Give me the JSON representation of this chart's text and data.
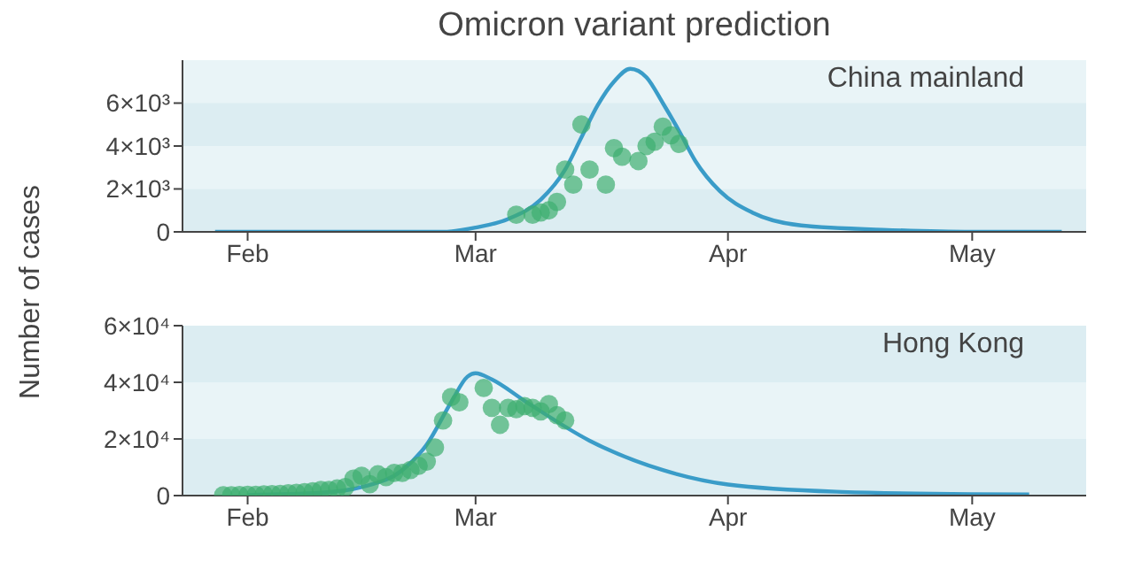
{
  "chart_data": [
    {
      "type": "scatter",
      "title": "Omicron variant prediction",
      "ylabel": "Number of cases",
      "annotations": [
        "China mainland"
      ],
      "xlim": [
        "--01-24",
        "--05-15"
      ],
      "xticks": [
        {
          "value": "--02-01",
          "label": "Feb"
        },
        {
          "value": "--03-01",
          "label": "Mar"
        },
        {
          "value": "--04-01",
          "label": "Apr"
        },
        {
          "value": "--05-01",
          "label": "May"
        }
      ],
      "ylim": [
        0,
        8000
      ],
      "yticks": [
        0,
        {
          "value": 2000,
          "label": "2×10³"
        },
        {
          "value": 4000,
          "label": "4×10³"
        },
        {
          "value": 6000,
          "label": "6×10³"
        }
      ],
      "series": [
        {
          "type": "line",
          "color": "#3a9cc8",
          "x": [
            "--01-28",
            "--02-15",
            "--02-25",
            "--03-01",
            "--03-05",
            "--03-09",
            "--03-12",
            "--03-14",
            "--03-16",
            "--03-18",
            "--03-20",
            "--03-22",
            "--03-24",
            "--03-26",
            "--03-28",
            "--03-31",
            "--04-04",
            "--04-10",
            "--04-20",
            "--05-01",
            "--05-12"
          ],
          "values": [
            0,
            0,
            0,
            200,
            600,
            1500,
            2900,
            4400,
            5900,
            7000,
            7600,
            7200,
            6000,
            4700,
            3300,
            1900,
            900,
            300,
            100,
            0,
            0
          ]
        },
        {
          "type": "scatter",
          "color": "#3dae6f",
          "x": [
            "--03-06",
            "--03-08",
            "--03-09",
            "--03-10",
            "--03-11",
            "--03-12",
            "--03-13",
            "--03-14",
            "--03-15",
            "--03-17",
            "--03-18",
            "--03-19",
            "--03-21",
            "--03-22",
            "--03-23",
            "--03-24",
            "--03-25",
            "--03-26"
          ],
          "values": [
            800,
            800,
            900,
            1000,
            1400,
            2900,
            2200,
            5000,
            2900,
            2200,
            3900,
            3500,
            3300,
            4000,
            4200,
            4900,
            4500,
            4100
          ]
        }
      ]
    },
    {
      "type": "scatter",
      "annotations": [
        "Hong Kong"
      ],
      "xlim": [
        "--01-24",
        "--05-15"
      ],
      "xticks": [
        {
          "value": "--02-01",
          "label": "Feb"
        },
        {
          "value": "--03-01",
          "label": "Mar"
        },
        {
          "value": "--04-01",
          "label": "Apr"
        },
        {
          "value": "--05-01",
          "label": "May"
        }
      ],
      "ylim": [
        0,
        60000
      ],
      "yticks": [
        0,
        {
          "value": 20000,
          "label": "2×10⁴"
        },
        {
          "value": 40000,
          "label": "4×10⁴"
        },
        {
          "value": 60000,
          "label": "6×10⁴"
        }
      ],
      "series": [
        {
          "type": "line",
          "color": "#3a9cc8",
          "x": [
            "--02-01",
            "--02-10",
            "--02-15",
            "--02-20",
            "--02-23",
            "--02-26",
            "--02-28",
            "--03-01",
            "--03-03",
            "--03-07",
            "--03-15",
            "--03-24",
            "--04-01",
            "--04-15",
            "--05-01",
            "--05-08"
          ],
          "values": [
            200,
            1000,
            3000,
            9000,
            18000,
            33000,
            42000,
            43200,
            41000,
            33500,
            19400,
            9000,
            3900,
            1300,
            500,
            400
          ]
        },
        {
          "type": "scatter",
          "color": "#3dae6f",
          "x": [
            "--01-29",
            "--01-30",
            "--01-31",
            "--02-01",
            "--02-02",
            "--02-03",
            "--02-04",
            "--02-05",
            "--02-06",
            "--02-07",
            "--02-08",
            "--02-09",
            "--02-10",
            "--02-11",
            "--02-12",
            "--02-13",
            "--02-14",
            "--02-15",
            "--02-16",
            "--02-17",
            "--02-18",
            "--02-19",
            "--02-20",
            "--02-21",
            "--02-22",
            "--02-23",
            "--02-24",
            "--02-25",
            "--02-26",
            "--02-27",
            "--03-02",
            "--03-03",
            "--03-04",
            "--03-05",
            "--03-06",
            "--03-07",
            "--03-08",
            "--03-09",
            "--03-10",
            "--03-11",
            "--03-12"
          ],
          "values": [
            100,
            100,
            200,
            300,
            300,
            400,
            500,
            600,
            800,
            1000,
            1200,
            1500,
            2000,
            2000,
            2500,
            3000,
            6000,
            7000,
            4000,
            7500,
            6500,
            8000,
            8000,
            9000,
            10500,
            12000,
            17000,
            26500,
            34800,
            32900,
            38000,
            31000,
            25000,
            31000,
            30500,
            31600,
            31000,
            29700,
            32300,
            28400,
            26500
          ]
        }
      ]
    }
  ]
}
